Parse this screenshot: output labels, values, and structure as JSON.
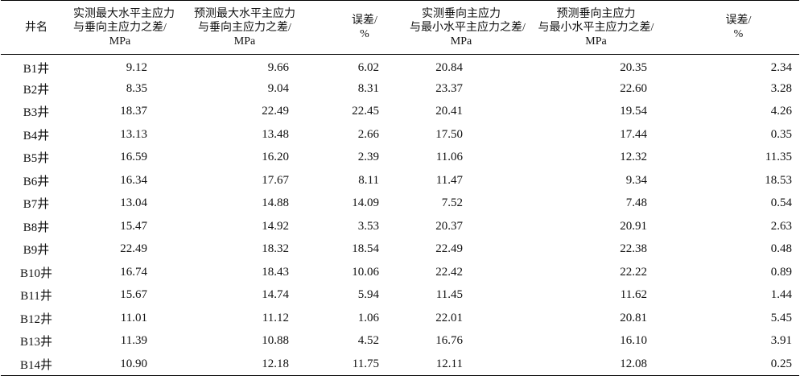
{
  "table": {
    "headers": [
      [
        "井名"
      ],
      [
        "实测最大水平主应力",
        "与垂向主应力之差/",
        "MPa"
      ],
      [
        "预测最大水平主应力",
        "与垂向主应力之差/",
        "MPa"
      ],
      [
        "误差/",
        "%"
      ],
      [
        "实测垂向主应力",
        "与最小水平主应力之差/",
        "MPa"
      ],
      [
        "预测垂向主应力",
        "与最小水平主应力之差/",
        "MPa"
      ],
      [
        "误差/",
        "%"
      ]
    ],
    "rows": [
      [
        "B1井",
        "9.12",
        "9.66",
        "6.02",
        "20.84",
        "20.35",
        "2.34"
      ],
      [
        "B2井",
        "8.35",
        "9.04",
        "8.31",
        "23.37",
        "22.60",
        "3.28"
      ],
      [
        "B3井",
        "18.37",
        "22.49",
        "22.45",
        "20.41",
        "19.54",
        "4.26"
      ],
      [
        "B4井",
        "13.13",
        "13.48",
        "2.66",
        "17.50",
        "17.44",
        "0.35"
      ],
      [
        "B5井",
        "16.59",
        "16.20",
        "2.39",
        "11.06",
        "12.32",
        "11.35"
      ],
      [
        "B6井",
        "16.34",
        "17.67",
        "8.11",
        "11.47",
        "9.34",
        "18.53"
      ],
      [
        "B7井",
        "13.04",
        "14.88",
        "14.09",
        "7.52",
        "7.48",
        "0.54"
      ],
      [
        "B8井",
        "15.47",
        "14.92",
        "3.53",
        "20.37",
        "20.91",
        "2.63"
      ],
      [
        "B9井",
        "22.49",
        "18.32",
        "18.54",
        "22.49",
        "22.38",
        "0.48"
      ],
      [
        "B10井",
        "16.74",
        "18.43",
        "10.06",
        "22.42",
        "22.22",
        "0.89"
      ],
      [
        "B11井",
        "15.67",
        "14.74",
        "5.94",
        "11.45",
        "11.62",
        "1.44"
      ],
      [
        "B12井",
        "11.01",
        "11.12",
        "1.06",
        "22.01",
        "20.81",
        "5.45"
      ],
      [
        "B13井",
        "11.39",
        "10.88",
        "4.52",
        "16.76",
        "16.10",
        "3.91"
      ],
      [
        "B14井",
        "10.90",
        "12.18",
        "11.75",
        "12.11",
        "12.08",
        "0.25"
      ]
    ]
  }
}
